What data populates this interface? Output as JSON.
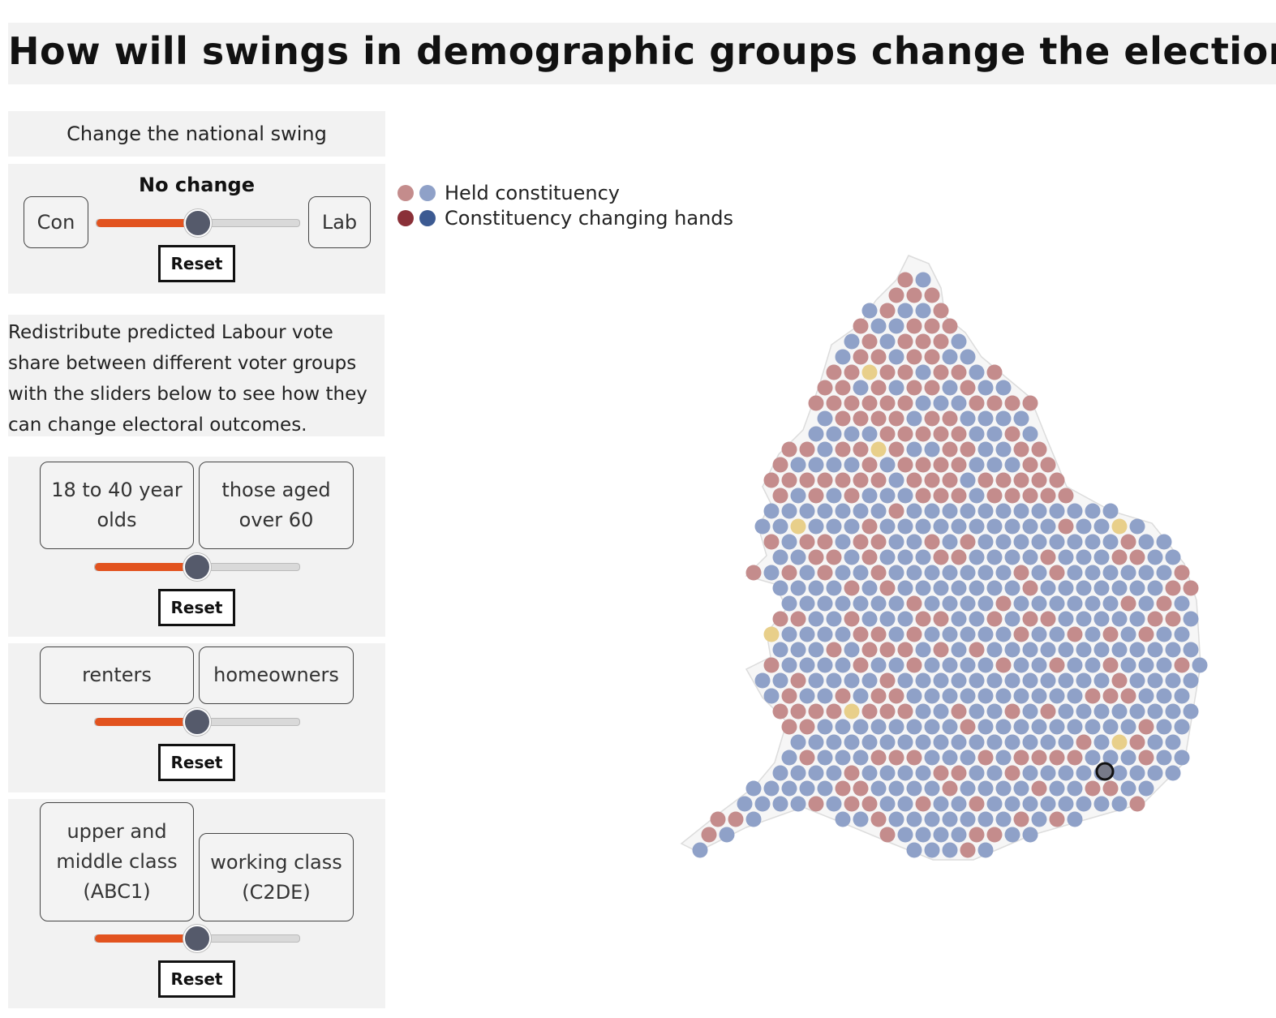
{
  "title": "How will swings in demographic groups change the election?",
  "national": {
    "header": "Change the national swing",
    "status": "No change",
    "left_label": "Con",
    "right_label": "Lab",
    "slider_value": 0.5,
    "reset_label": "Reset"
  },
  "intro_text": "Redistribute predicted Labour vote share between different voter groups with the sliders below to see how they can change electoral outcomes.",
  "groups": [
    {
      "left": "18 to 40 year olds",
      "right": "those aged over 60",
      "slider_value": 0.5,
      "reset_label": "Reset"
    },
    {
      "left": "renters",
      "right": "homeowners",
      "slider_value": 0.5,
      "reset_label": "Reset"
    },
    {
      "left": "upper and middle class (ABC1)",
      "right": "working class (C2DE)",
      "slider_value": 0.5,
      "reset_label": "Reset"
    }
  ],
  "legend": {
    "held": "Held constituency",
    "changing": "Constituency changing hands"
  },
  "colors": {
    "slider_fill": "#e2531f",
    "lab_held": "#c48c8c",
    "con_held": "#8fa1c8",
    "lab_changing": "#8a3038",
    "con_changing": "#3c5a92",
    "libdem": "#e8cf8a",
    "green": "#9cc89a",
    "plaid": "#9ab59a",
    "other": "#8e9a8e"
  }
}
